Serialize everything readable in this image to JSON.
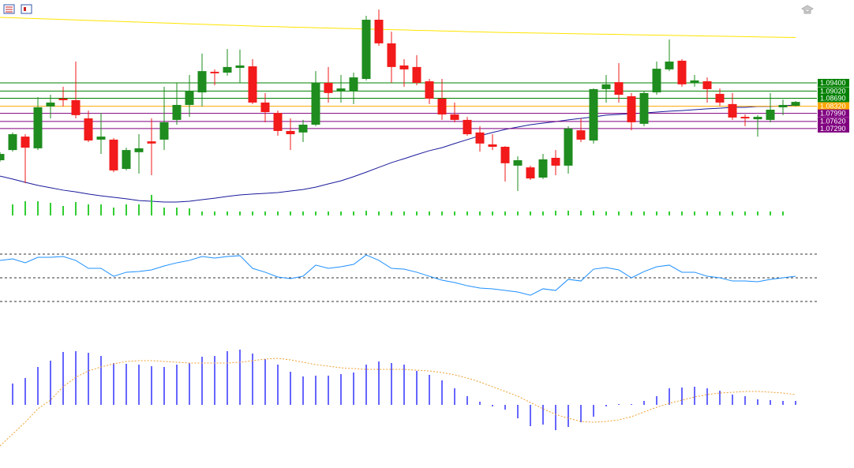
{
  "chart_data": [
    {
      "type": "candlestick",
      "open": [
        1.0583,
        1.063,
        1.0692,
        1.0638,
        1.0831,
        1.0867,
        1.086,
        1.0776,
        1.0678,
        1.0678,
        1.0543,
        1.062,
        1.067,
        1.0678,
        1.0769,
        1.0838,
        1.0896,
        1.0991,
        1.0987,
        1.1009,
        1.1016,
        1.0849,
        1.0801,
        1.0718,
        1.0711,
        1.0747,
        1.094,
        1.0903,
        1.0903,
        1.0958,
        1.1231,
        1.1122,
        1.102,
        1.1013,
        1.0947,
        1.0867,
        1.0794,
        1.0769,
        1.0711,
        1.0656,
        1.0645,
        1.0558,
        1.055,
        1.0503,
        1.0594,
        1.0558,
        1.0721,
        1.0674,
        1.0911,
        1.0943,
        1.0878,
        1.0751,
        1.0896,
        1.1002,
        1.1042,
        1.094,
        1.0947,
        1.0889,
        1.0842,
        1.0783,
        1.0772,
        1.0769,
        1.0827,
        1.0834
      ],
      "high": [
        1.062,
        1.0711,
        1.0703,
        1.0874,
        1.0885,
        1.0922,
        1.1038,
        1.0812,
        1.0801,
        1.0685,
        1.0641,
        1.0703,
        1.0776,
        1.0922,
        1.094,
        1.0976,
        1.1075,
        1.1002,
        1.1096,
        1.1093,
        1.1049,
        1.0893,
        1.0812,
        1.0776,
        1.0769,
        1.0994,
        1.1013,
        1.0976,
        1.0987,
        1.1249,
        1.1278,
        1.1176,
        1.1049,
        1.1067,
        1.0958,
        1.0958,
        1.0849,
        1.0783,
        1.074,
        1.0703,
        1.0648,
        1.0601,
        1.0558,
        1.0612,
        1.063,
        1.074,
        1.0776,
        1.0914,
        1.0976,
        1.1031,
        1.0893,
        1.0903,
        1.1038,
        1.114,
        1.1049,
        1.0976,
        1.0965,
        1.0914,
        1.0893,
        1.0794,
        1.0791,
        1.0893,
        1.0863,
        1.0856
      ],
      "low": [
        1.0576,
        1.0623,
        1.0477,
        1.063,
        1.0776,
        1.0831,
        1.0776,
        1.0667,
        1.0612,
        1.0528,
        1.0536,
        1.0521,
        1.0514,
        1.063,
        1.0747,
        1.0783,
        1.0831,
        1.0929,
        1.0973,
        1.094,
        1.0842,
        1.0758,
        1.0696,
        1.063,
        1.0667,
        1.074,
        1.0849,
        1.0849,
        1.0842,
        1.0951,
        1.1111,
        1.094,
        1.0922,
        1.0929,
        1.0842,
        1.0769,
        1.0758,
        1.0696,
        1.0623,
        1.063,
        1.0485,
        1.0441,
        1.0492,
        1.0496,
        1.0514,
        1.0521,
        1.0667,
        1.066,
        1.0849,
        1.0849,
        1.0721,
        1.074,
        1.0885,
        1.0994,
        1.0922,
        1.0922,
        1.0849,
        1.0834,
        1.0769,
        1.074,
        1.0692,
        1.0758,
        1.0791,
        1.0831
      ],
      "close": [
        1.0612,
        1.0703,
        1.0641,
        1.0827,
        1.0849,
        1.086,
        1.0791,
        1.0674,
        1.0692,
        1.0536,
        1.063,
        1.0638,
        1.066,
        1.0758,
        1.0838,
        1.0903,
        1.0994,
        1.0984,
        1.1013,
        1.102,
        1.0849,
        1.0805,
        1.0718,
        1.0703,
        1.0747,
        1.094,
        1.0893,
        1.0914,
        1.0965,
        1.1231,
        1.1122,
        1.1013,
        1.1002,
        1.094,
        1.0867,
        1.0794,
        1.0769,
        1.0703,
        1.066,
        1.0645,
        1.0569,
        1.0583,
        1.0499,
        1.0587,
        1.0558,
        1.0729,
        1.0678,
        1.0911,
        1.0933,
        1.0885,
        1.0758,
        1.0893,
        1.1005,
        1.1038,
        1.0933,
        1.0951,
        1.0911,
        1.0849,
        1.078,
        1.0776,
        1.0783,
        1.0816,
        1.0838,
        1.0852
      ],
      "up_color": "#1e8c1e",
      "down_color": "#f21a1a",
      "ylim": [
        1.0321,
        1.1322
      ],
      "yticks": [
        {
          "value": 1.094,
          "label": "1.09400"
        },
        {
          "value": 1.0902,
          "label": "1.09020"
        },
        {
          "value": 1.0869,
          "label": "1.08690"
        },
        {
          "value": 1.0832,
          "label": "1.08320"
        },
        {
          "value": 1.0799,
          "label": "1.07990"
        },
        {
          "value": 1.0762,
          "label": "1.07620"
        },
        {
          "value": 1.0729,
          "label": "1.07290"
        }
      ],
      "tick_colors": [
        "#008000",
        "#008000",
        "#008000",
        "#ffa500",
        "#800080",
        "#800080",
        "#800080"
      ],
      "series": [
        {
          "color": "#ffe400",
          "values": [
            1.1242,
            1.124,
            1.1238,
            1.1236,
            1.1234,
            1.1232,
            1.123,
            1.1228,
            1.1226,
            1.1224,
            1.1222,
            1.122,
            1.1218,
            1.1216,
            1.1214,
            1.1212,
            1.121,
            1.1208,
            1.1206,
            1.1204,
            1.1202,
            1.12,
            1.1199,
            1.1197,
            1.1196,
            1.1194,
            1.1193,
            1.1191,
            1.119,
            1.1188,
            1.1187,
            1.1185,
            1.1184,
            1.1182,
            1.1181,
            1.1179,
            1.1178,
            1.1176,
            1.1175,
            1.1173,
            1.1172,
            1.1171,
            1.117,
            1.1169,
            1.1168,
            1.1167,
            1.1166,
            1.1165,
            1.1164,
            1.1163,
            1.1162,
            1.1161,
            1.116,
            1.1159,
            1.1158,
            1.1157,
            1.1156,
            1.1155,
            1.1154,
            1.1153,
            1.1152,
            1.1151,
            1.115,
            1.1149
          ]
        },
        {
          "color": "#1a1a9c",
          "values": [
            1.051,
            1.0496,
            1.0481,
            1.0467,
            1.0456,
            1.0445,
            1.0437,
            1.0427,
            1.0419,
            1.0412,
            1.0405,
            1.0397,
            1.0394,
            1.039,
            1.039,
            1.0394,
            1.0401,
            1.0408,
            1.0416,
            1.0423,
            1.0427,
            1.043,
            1.0434,
            1.0441,
            1.0448,
            1.0459,
            1.0474,
            1.0488,
            1.0507,
            1.0528,
            1.055,
            1.0572,
            1.059,
            1.0609,
            1.0627,
            1.0641,
            1.066,
            1.0678,
            1.0696,
            1.0711,
            1.0725,
            1.0736,
            1.0747,
            1.0754,
            1.0761,
            1.0769,
            1.0776,
            1.0783,
            1.0791,
            1.0794,
            1.0798,
            1.0801,
            1.0805,
            1.0809,
            1.0812,
            1.0816,
            1.082,
            1.0823,
            1.0827,
            1.0827,
            1.0831,
            1.0831,
            1.0834,
            1.0838
          ]
        }
      ]
    },
    {
      "type": "bar",
      "color": "#32cd32",
      "ylim": [
        0,
        30
      ],
      "values": [
        null,
        14,
        18,
        18,
        16,
        12,
        17,
        14,
        14,
        10,
        14,
        14,
        26,
        10,
        10,
        9,
        5,
        5,
        5,
        5,
        5,
        5,
        5,
        5,
        5,
        5,
        5,
        5,
        5,
        6,
        5,
        5,
        5,
        5,
        5,
        5,
        5,
        5,
        5,
        5,
        5,
        5,
        5,
        5,
        6,
        6,
        6,
        6,
        5,
        5,
        5,
        5,
        5,
        5,
        5,
        5,
        5,
        5,
        5,
        5,
        5,
        5,
        5,
        null
      ]
    },
    {
      "type": "line",
      "color": "#1e90ff",
      "ylim": [
        0,
        100
      ],
      "levels": [
        70,
        50,
        30
      ],
      "values": [
        64.7,
        66,
        62.7,
        67.3,
        67.3,
        68,
        64.7,
        58,
        58,
        51.3,
        54.7,
        55.3,
        56.7,
        60,
        62.7,
        64.7,
        68,
        66.7,
        68,
        68.7,
        58,
        54.7,
        50.7,
        49.3,
        51.3,
        60.7,
        58,
        59.3,
        61.3,
        69.3,
        64.7,
        58,
        57.3,
        54.7,
        51.3,
        48,
        46,
        43.3,
        41.3,
        40.7,
        39.3,
        38,
        35.3,
        40.7,
        39.3,
        48.7,
        47.3,
        57.3,
        58.7,
        56.7,
        50,
        55.3,
        59.3,
        60.7,
        54.7,
        54.7,
        51.3,
        50,
        47.3,
        47.3,
        46.7,
        48.7,
        50,
        51.3
      ]
    },
    {
      "type": "macd",
      "color": "#0000ff",
      "signal_color": "#f0a030",
      "ylim": [
        -8,
        10
      ],
      "values": [
        null,
        2.7,
        3.4,
        4.8,
        5.6,
        6.7,
        6.8,
        6.6,
        6.2,
        5.3,
        5.2,
        5.1,
        4.9,
        4.8,
        5.1,
        5.3,
        6.1,
        6.2,
        6.8,
        7.0,
        6.5,
        5.8,
        5.1,
        4.2,
        3.6,
        3.7,
        3.7,
        3.9,
        4.1,
        5.1,
        5.5,
        5.3,
        5.1,
        4.3,
        3.8,
        3.1,
        2.1,
        1.1,
        0.4,
        -0.2,
        -0.6,
        -1.7,
        -2.7,
        -2.5,
        -3.2,
        -2.8,
        -2.2,
        -1.5,
        -0.2,
        0.1,
        0.1,
        0.5,
        1.1,
        2.1,
        2.2,
        2.3,
        2.1,
        1.8,
        1.3,
        1.1,
        0.7,
        0.6,
        0.5,
        0.5
      ],
      "signal": [
        -5.2,
        -3.7,
        -2.2,
        -0.5,
        0.6,
        2.3,
        3.5,
        4.3,
        4.8,
        5.2,
        5.5,
        5.6,
        5.6,
        5.5,
        5.4,
        5.3,
        5.3,
        5.3,
        5.3,
        5.4,
        5.6,
        5.8,
        5.9,
        5.7,
        5.4,
        5.1,
        4.9,
        4.7,
        4.6,
        4.5,
        4.5,
        4.5,
        4.5,
        4.4,
        4.3,
        4.1,
        3.8,
        3.4,
        2.9,
        2.3,
        1.7,
        1.1,
        0.3,
        -0.5,
        -1.2,
        -1.7,
        -2.1,
        -2.2,
        -2.1,
        -1.9,
        -1.5,
        -0.9,
        -0.3,
        0.2,
        0.6,
        1.0,
        1.3,
        1.5,
        1.6,
        1.7,
        1.7,
        1.6,
        1.5,
        1.3
      ]
    }
  ]
}
